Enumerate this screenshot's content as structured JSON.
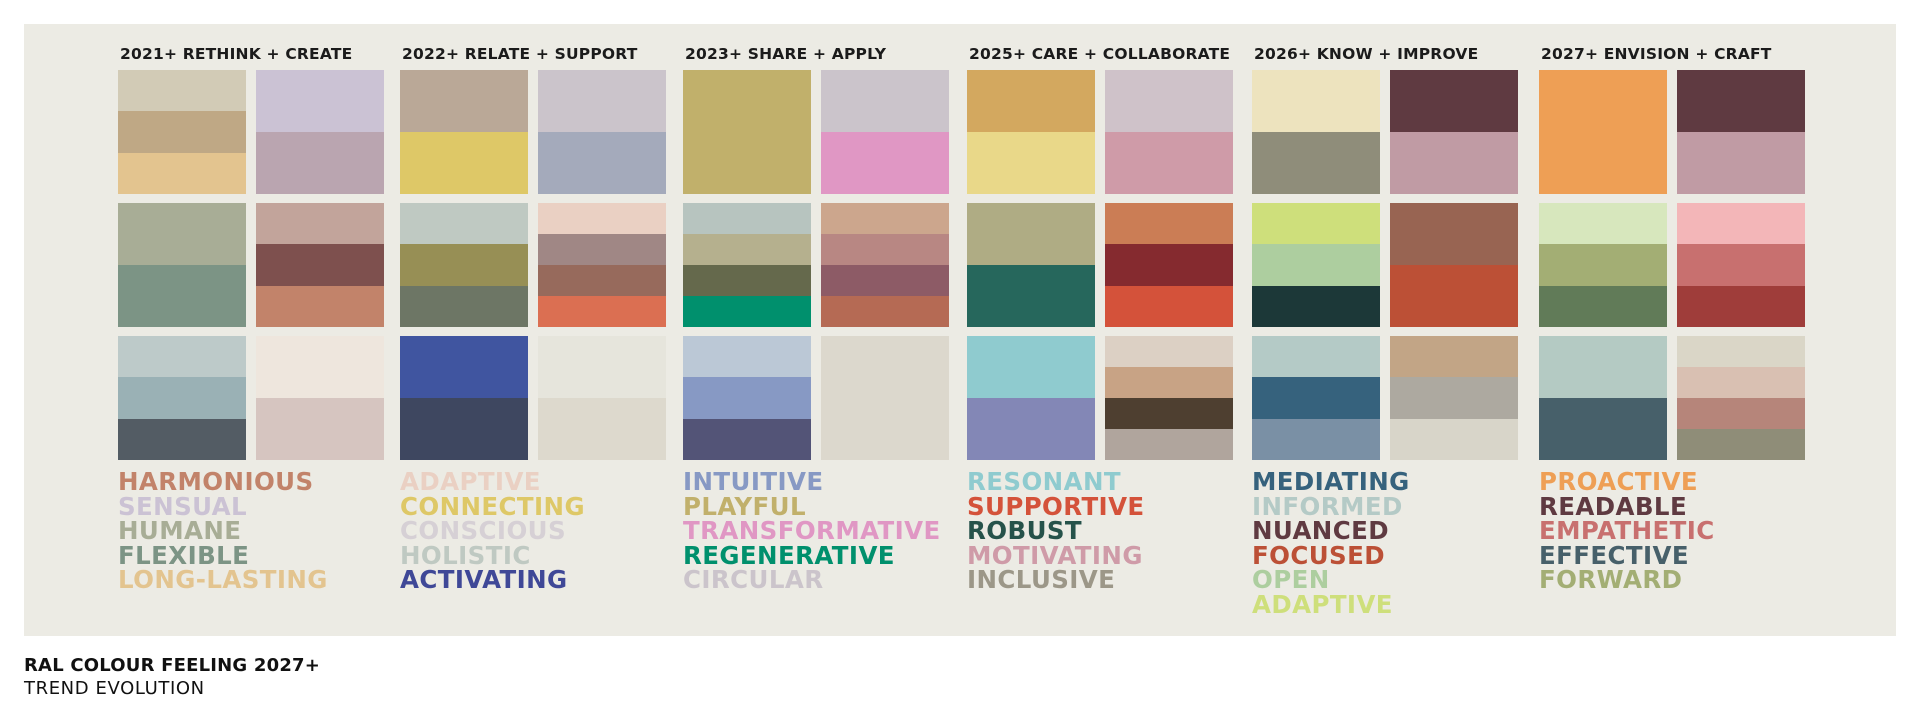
{
  "footer": {
    "title": "RAL COLOUR FEELING 2027+",
    "subtitle": "TREND EVOLUTION"
  },
  "groups": [
    {
      "title": "2021+ RETHINK + CREATE",
      "swatches": [
        [
          "#D2CBB6",
          "#BFA885",
          "#E3C48F"
        ],
        [
          "#CBC2D4",
          "#BAA5B0"
        ],
        [
          "#A8AD96",
          "#7C9485"
        ],
        [
          "#C2A49B",
          "#7E504E",
          "#C2836A"
        ],
        [
          "#BDCAC9",
          "#9AB1B5",
          "#535C64"
        ],
        [
          "#EEE6DD",
          "#D6C5C0"
        ]
      ],
      "words": [
        {
          "text": "HARMONIOUS",
          "color": "#C2836A"
        },
        {
          "text": "SENSUAL",
          "color": "#CBC2D4"
        },
        {
          "text": "HUMANE",
          "color": "#A8AD96"
        },
        {
          "text": "FLEXIBLE",
          "color": "#7C9485"
        },
        {
          "text": "LONG-LASTING",
          "color": "#E3C48F"
        }
      ]
    },
    {
      "title": "2022+ RELATE + SUPPORT",
      "swatches": [
        [
          "#BAA897",
          "#DEC867"
        ],
        [
          "#CBC4CB",
          "#A4AABB"
        ],
        [
          "#BFC9C2",
          "#978F55",
          "#6D7665"
        ],
        [
          "#EAD0C3",
          "#A08785",
          "#976A5C",
          "#DB6F52"
        ],
        [
          "#4055A0",
          "#3E4760"
        ],
        [
          "#E6E5DC",
          "#DDD9CD"
        ]
      ],
      "words": [
        {
          "text": "ADAPTIVE",
          "color": "#EAD0C3"
        },
        {
          "text": "CONNECTING",
          "color": "#DEC867"
        },
        {
          "text": "CONSCIOUS",
          "color": "#D6D0D5"
        },
        {
          "text": "HOLISTIC",
          "color": "#BFC9C2"
        },
        {
          "text": "ACTIVATING",
          "color": "#3F4897"
        }
      ]
    },
    {
      "title": "2023+ SHARE + APPLY",
      "swatches": [
        [
          "#C1B06B"
        ],
        [
          "#CBC4CB",
          "#E097C4"
        ],
        [
          "#B7C4BF",
          "#B5B08E",
          "#65694C",
          "#00906D"
        ],
        [
          "#CCA68D",
          "#B88783",
          "#8D5B66",
          "#B56A54"
        ],
        [
          "#BBC8D6",
          "#8799C4",
          "#535477"
        ],
        [
          "#DCD8CD"
        ]
      ],
      "words": [
        {
          "text": "INTUITIVE",
          "color": "#8799C4"
        },
        {
          "text": "PLAYFUL",
          "color": "#C1B06B"
        },
        {
          "text": "TRANSFORMATIVE",
          "color": "#E097C4"
        },
        {
          "text": "REGENERATIVE",
          "color": "#00906D"
        },
        {
          "text": "CIRCULAR",
          "color": "#CBC4CB"
        }
      ]
    },
    {
      "title": "2025+ CARE + COLLABORATE",
      "swatches": [
        [
          "#D3A85F",
          "#E9D889"
        ],
        [
          "#CFC2C9",
          "#CF9BA8"
        ],
        [
          "#AFAC84",
          "#26675C"
        ],
        [
          "#CB7D55",
          "#852A2F",
          "#D4523A"
        ],
        [
          "#8FCBCF",
          "#8387B6"
        ],
        [
          "#DCD0C4",
          "#C8A385",
          "#4E3F30",
          "#B0A59D"
        ]
      ],
      "words": [
        {
          "text": "RESONANT",
          "color": "#8FCBCF"
        },
        {
          "text": "SUPPORTIVE",
          "color": "#D4523A"
        },
        {
          "text": "ROBUST",
          "color": "#26524A"
        },
        {
          "text": "MOTIVATING",
          "color": "#CF9BA8"
        },
        {
          "text": "INCLUSIVE",
          "color": "#9C9788"
        }
      ]
    },
    {
      "title": "2026+ KNOW + IMPROVE",
      "swatches": [
        [
          "#EDE3BE",
          "#8F8D7A"
        ],
        [
          "#5F3A41",
          "#C09BA4"
        ],
        [
          "#CEDF7B",
          "#ADCE9F",
          "#1C3838"
        ],
        [
          "#986452",
          "#BC5036"
        ],
        [
          "#B4CAC6",
          "#36627D",
          "#7A90A5"
        ],
        [
          "#C2A586",
          "#ADA9A0",
          "#D8D5C9"
        ]
      ],
      "words": [
        {
          "text": "MEDIATING",
          "color": "#36627D"
        },
        {
          "text": "INFORMED",
          "color": "#B4CAC6"
        },
        {
          "text": "NUANCED",
          "color": "#5F3A41"
        },
        {
          "text": "FOCUSED",
          "color": "#BC5036"
        },
        {
          "text": "OPEN",
          "color": "#ADCE9F"
        },
        {
          "text": "ADAPTIVE",
          "color": "#CEDF7B"
        }
      ]
    },
    {
      "title": "2027+ ENVISION + CRAFT",
      "swatches": [
        [
          "#EE9F55"
        ],
        [
          "#5F3A41",
          "#C09BA4"
        ],
        [
          "#D7E7BD",
          "#A3AE74",
          "#617B58"
        ],
        [
          "#F3B6B8",
          "#C8706F",
          "#9F3D3A"
        ],
        [
          "#B4CAC3",
          "#47606A"
        ],
        [
          "#DAD6C7",
          "#D9C0B2",
          "#B6857A",
          "#8F8D78"
        ]
      ],
      "words": [
        {
          "text": "PROACTIVE",
          "color": "#EE9F55"
        },
        {
          "text": "READABLE",
          "color": "#5F3A41"
        },
        {
          "text": "EMPATHETIC",
          "color": "#C8706F"
        },
        {
          "text": "EFFECTIVE",
          "color": "#47606A"
        },
        {
          "text": "FORWARD",
          "color": "#A3AE74"
        }
      ]
    }
  ]
}
